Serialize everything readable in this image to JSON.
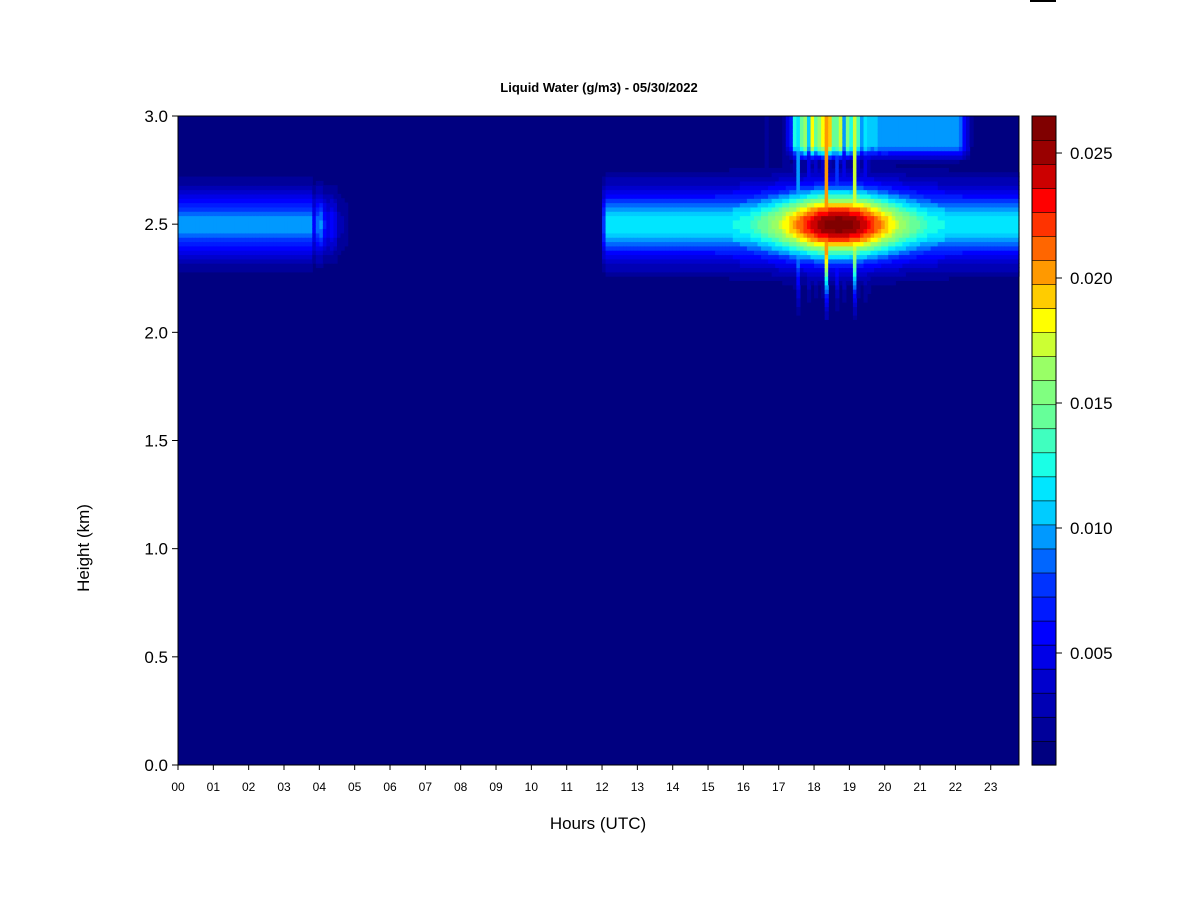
{
  "chart_data": {
    "type": "heatmap",
    "title": "Liquid Water (g/m3) - 05/30/2022",
    "xlabel": "Hours (UTC)",
    "ylabel": "Height (km)",
    "x_ticks": [
      "00",
      "01",
      "02",
      "03",
      "04",
      "05",
      "06",
      "07",
      "08",
      "09",
      "10",
      "11",
      "12",
      "13",
      "14",
      "15",
      "16",
      "17",
      "18",
      "19",
      "20",
      "21",
      "22",
      "23"
    ],
    "xlim": [
      0,
      23.8
    ],
    "y_ticks": [
      "0.0",
      "0.5",
      "1.0",
      "1.5",
      "2.0",
      "2.5",
      "3.0"
    ],
    "ylim": [
      0,
      3.0
    ],
    "colorbar": {
      "ticks": [
        "0.005",
        "0.010",
        "0.015",
        "0.020",
        "0.025"
      ],
      "range": [
        0.001,
        0.026
      ],
      "levels": 25,
      "colors": [
        "#000080",
        "#00009a",
        "#0000b4",
        "#0000cd",
        "#0000e7",
        "#0000ff",
        "#001aff",
        "#0033ff",
        "#0066ff",
        "#0099ff",
        "#00ccff",
        "#00e6ff",
        "#1affe6",
        "#40ffbf",
        "#66ff99",
        "#80ff80",
        "#99ff66",
        "#ccff33",
        "#ffff00",
        "#ffcc00",
        "#ff9900",
        "#ff6600",
        "#ff3300",
        "#ff0000",
        "#cc0000",
        "#990000",
        "#800000"
      ]
    },
    "background_value": 0.0,
    "cloud_layers": [
      {
        "x_range": [
          0.0,
          4.9
        ],
        "height_center": 2.5,
        "peak_value": 0.0095
      },
      {
        "x_range": [
          12.0,
          23.8
        ],
        "height_center": 2.5,
        "peak_value": 0.026
      },
      {
        "x_range": [
          17.1,
          22.5
        ],
        "height_range": [
          2.8,
          3.0
        ],
        "peak_value": 0.011
      }
    ]
  }
}
